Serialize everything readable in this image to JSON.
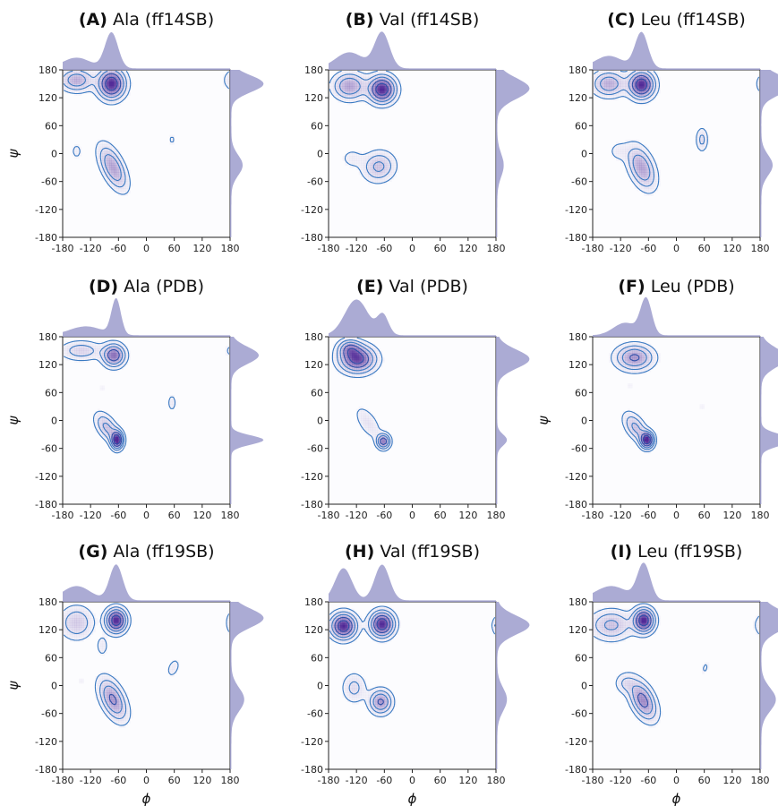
{
  "figure": {
    "axis_label_phi": "ϕ",
    "axis_label_psi": "ψ"
  },
  "chart_data": [
    {
      "type": "heatmap",
      "panel": "A",
      "title_bold": "(A)",
      "title_text": " Ala (ff14SB)",
      "xticks": [
        -180,
        -120,
        -60,
        0,
        60,
        120,
        180
      ],
      "yticks": [
        -180,
        -120,
        -60,
        0,
        60,
        120,
        180
      ],
      "xlim": [
        -180,
        180
      ],
      "ylim": [
        -180,
        180
      ],
      "show_xlabel": false,
      "show_ylabel": true,
      "regions": [
        {
          "phi": -75,
          "psi": 150,
          "sx": 18,
          "sy": 20,
          "peak": 1.0
        },
        {
          "phi": -150,
          "psi": 158,
          "sx": 22,
          "sy": 15,
          "peak": 0.5
        },
        {
          "phi": -72,
          "psi": -30,
          "sx": 14,
          "sy": 32,
          "peak": 0.55,
          "tilt": 0.45
        },
        {
          "phi": -150,
          "psi": 5,
          "sx": 8,
          "sy": 12,
          "peak": 0.12
        },
        {
          "phi": 55,
          "psi": 30,
          "sx": 6,
          "sy": 10,
          "peak": 0.1
        }
      ],
      "marg_phi": [
        {
          "c": -75,
          "w": 14,
          "h": 1.0
        },
        {
          "c": -150,
          "w": 30,
          "h": 0.3
        }
      ],
      "marg_psi": [
        {
          "c": 150,
          "w": 18,
          "h": 1.0
        },
        {
          "c": -25,
          "w": 22,
          "h": 0.35
        }
      ]
    },
    {
      "type": "heatmap",
      "panel": "B",
      "title_bold": "(B)",
      "title_text": " Val (ff14SB)",
      "xticks": [
        -180,
        -120,
        -60,
        0,
        60,
        120,
        180
      ],
      "yticks": [
        -180,
        -120,
        -60,
        0,
        60,
        120,
        180
      ],
      "xlim": [
        -180,
        180
      ],
      "ylim": [
        -180,
        180
      ],
      "show_xlabel": false,
      "show_ylabel": false,
      "regions": [
        {
          "phi": -65,
          "psi": 138,
          "sx": 18,
          "sy": 18,
          "peak": 1.0
        },
        {
          "phi": -135,
          "psi": 145,
          "sx": 22,
          "sy": 18,
          "peak": 0.55
        },
        {
          "phi": -72,
          "psi": -28,
          "sx": 22,
          "sy": 20,
          "peak": 0.4,
          "tilt": 0.3
        },
        {
          "phi": -130,
          "psi": -10,
          "sx": 16,
          "sy": 14,
          "peak": 0.12
        }
      ],
      "marg_phi": [
        {
          "c": -65,
          "w": 16,
          "h": 1.0
        },
        {
          "c": -135,
          "w": 30,
          "h": 0.45
        }
      ],
      "marg_psi": [
        {
          "c": 140,
          "w": 22,
          "h": 1.0
        },
        {
          "c": -25,
          "w": 25,
          "h": 0.2
        }
      ]
    },
    {
      "type": "heatmap",
      "panel": "C",
      "title_bold": "(C)",
      "title_text": " Leu (ff14SB)",
      "xticks": [
        -180,
        -120,
        -60,
        0,
        60,
        120,
        180
      ],
      "yticks": [
        -180,
        -120,
        -60,
        0,
        60,
        120,
        180
      ],
      "xlim": [
        -180,
        180
      ],
      "ylim": [
        -180,
        180
      ],
      "show_xlabel": false,
      "show_ylabel": false,
      "regions": [
        {
          "phi": -75,
          "psi": 148,
          "sx": 17,
          "sy": 18,
          "peak": 1.0
        },
        {
          "phi": -145,
          "psi": 150,
          "sx": 22,
          "sy": 17,
          "peak": 0.5
        },
        {
          "phi": -75,
          "psi": -30,
          "sx": 16,
          "sy": 30,
          "peak": 0.55,
          "tilt": 0.4
        },
        {
          "phi": -125,
          "psi": 5,
          "sx": 14,
          "sy": 14,
          "peak": 0.12
        },
        {
          "phi": 55,
          "psi": 30,
          "sx": 8,
          "sy": 16,
          "peak": 0.25
        }
      ],
      "marg_phi": [
        {
          "c": -75,
          "w": 14,
          "h": 1.0
        },
        {
          "c": -145,
          "w": 30,
          "h": 0.35
        }
      ],
      "marg_psi": [
        {
          "c": 148,
          "w": 20,
          "h": 1.0
        },
        {
          "c": -25,
          "w": 22,
          "h": 0.35
        }
      ]
    },
    {
      "type": "heatmap",
      "panel": "D",
      "title_bold": "(D)",
      "title_text": " Ala (PDB)",
      "xticks": [
        -180,
        -120,
        -60,
        0,
        60,
        120,
        180
      ],
      "yticks": [
        -180,
        -120,
        -60,
        0,
        60,
        120,
        180
      ],
      "xlim": [
        -180,
        180
      ],
      "ylim": [
        -180,
        180
      ],
      "show_xlabel": false,
      "show_ylabel": true,
      "regions": [
        {
          "phi": -70,
          "psi": 140,
          "sx": 15,
          "sy": 15,
          "peak": 0.75
        },
        {
          "phi": -140,
          "psi": 150,
          "sx": 28,
          "sy": 13,
          "peak": 0.3
        },
        {
          "phi": -63,
          "psi": -42,
          "sx": 8,
          "sy": 12,
          "peak": 1.0
        },
        {
          "phi": -85,
          "psi": -15,
          "sx": 12,
          "sy": 22,
          "peak": 0.4,
          "tilt": 0.6
        },
        {
          "phi": 55,
          "psi": 38,
          "sx": 6,
          "sy": 12,
          "peak": 0.15
        },
        {
          "phi": -95,
          "psi": 70,
          "sx": 4,
          "sy": 6,
          "peak": 0.08
        }
      ],
      "marg_phi": [
        {
          "c": -65,
          "w": 10,
          "h": 1.0
        },
        {
          "c": -130,
          "w": 35,
          "h": 0.25
        }
      ],
      "marg_psi": [
        {
          "c": 140,
          "w": 18,
          "h": 0.85
        },
        {
          "c": -42,
          "w": 10,
          "h": 1.0
        }
      ]
    },
    {
      "type": "heatmap",
      "panel": "E",
      "title_bold": "(E)",
      "title_text": " Val (PDB)",
      "xticks": [
        -180,
        -120,
        -60,
        0,
        60,
        120,
        180
      ],
      "yticks": [
        -180,
        -120,
        -60,
        0,
        60,
        120,
        180
      ],
      "xlim": [
        -180,
        180
      ],
      "ylim": [
        -180,
        180
      ],
      "show_xlabel": false,
      "show_ylabel": false,
      "regions": [
        {
          "phi": -118,
          "psi": 132,
          "sx": 24,
          "sy": 18,
          "peak": 0.9
        },
        {
          "phi": -135,
          "psi": 155,
          "sx": 15,
          "sy": 12,
          "peak": 0.45
        },
        {
          "phi": -62,
          "psi": -45,
          "sx": 9,
          "sy": 10,
          "peak": 0.7
        },
        {
          "phi": -95,
          "psi": -5,
          "sx": 12,
          "sy": 25,
          "peak": 0.2,
          "tilt": 0.6
        }
      ],
      "marg_phi": [
        {
          "c": -120,
          "w": 25,
          "h": 1.0
        },
        {
          "c": -63,
          "w": 12,
          "h": 0.55
        }
      ],
      "marg_psi": [
        {
          "c": 132,
          "w": 20,
          "h": 1.0
        },
        {
          "c": -42,
          "w": 12,
          "h": 0.3
        }
      ]
    },
    {
      "type": "heatmap",
      "panel": "F",
      "title_bold": "(F)",
      "title_text": " Leu  (PDB)",
      "xticks": [
        -180,
        -120,
        -60,
        0,
        60,
        120,
        180
      ],
      "yticks": [
        -180,
        -120,
        -60,
        0,
        60,
        120,
        180
      ],
      "xlim": [
        -180,
        180
      ],
      "ylim": [
        -180,
        180
      ],
      "show_xlabel": false,
      "show_ylabel": true,
      "regions": [
        {
          "phi": -90,
          "psi": 135,
          "sx": 25,
          "sy": 17,
          "peak": 0.6
        },
        {
          "phi": -63,
          "psi": -42,
          "sx": 9,
          "sy": 11,
          "peak": 1.0
        },
        {
          "phi": -88,
          "psi": -15,
          "sx": 12,
          "sy": 22,
          "peak": 0.4,
          "tilt": 0.6
        },
        {
          "phi": 55,
          "psi": 30,
          "sx": 4,
          "sy": 6,
          "peak": 0.08
        },
        {
          "phi": -100,
          "psi": 75,
          "sx": 4,
          "sy": 8,
          "peak": 0.08
        }
      ],
      "marg_phi": [
        {
          "c": -65,
          "w": 12,
          "h": 1.0
        },
        {
          "c": -110,
          "w": 25,
          "h": 0.35
        }
      ],
      "marg_psi": [
        {
          "c": 135,
          "w": 20,
          "h": 0.8
        },
        {
          "c": -42,
          "w": 12,
          "h": 1.0
        }
      ]
    },
    {
      "type": "heatmap",
      "panel": "G",
      "title_bold": "(G)",
      "title_text": " Ala (ff19SB)",
      "xticks": [
        -180,
        -120,
        -60,
        0,
        60,
        120,
        180
      ],
      "yticks": [
        -180,
        -120,
        -60,
        0,
        60,
        120,
        180
      ],
      "xlim": [
        -180,
        180
      ],
      "ylim": [
        -180,
        180
      ],
      "show_xlabel": true,
      "show_ylabel": true,
      "regions": [
        {
          "phi": -65,
          "psi": 140,
          "sx": 14,
          "sy": 16,
          "peak": 1.0
        },
        {
          "phi": -150,
          "psi": 135,
          "sx": 22,
          "sy": 22,
          "peak": 0.35
        },
        {
          "phi": -72,
          "psi": -30,
          "sx": 15,
          "sy": 30,
          "peak": 0.6,
          "tilt": 0.45
        },
        {
          "phi": -95,
          "psi": 85,
          "sx": 8,
          "sy": 14,
          "peak": 0.15
        },
        {
          "phi": 58,
          "psi": 38,
          "sx": 8,
          "sy": 14,
          "peak": 0.15,
          "tilt": -0.4
        },
        {
          "phi": -140,
          "psi": 10,
          "sx": 8,
          "sy": 10,
          "peak": 0.08
        }
      ],
      "marg_phi": [
        {
          "c": -65,
          "w": 14,
          "h": 1.0
        },
        {
          "c": -150,
          "w": 30,
          "h": 0.4
        }
      ],
      "marg_psi": [
        {
          "c": 145,
          "w": 20,
          "h": 1.0
        },
        {
          "c": -30,
          "w": 25,
          "h": 0.4
        }
      ]
    },
    {
      "type": "heatmap",
      "panel": "H",
      "title_bold": "(H)",
      "title_text": " Val (ff19SB)",
      "xticks": [
        -180,
        -120,
        -60,
        0,
        60,
        120,
        180
      ],
      "yticks": [
        -180,
        -120,
        -60,
        0,
        60,
        120,
        180
      ],
      "xlim": [
        -180,
        180
      ],
      "ylim": [
        -180,
        180
      ],
      "show_xlabel": true,
      "show_ylabel": false,
      "regions": [
        {
          "phi": -148,
          "psi": 128,
          "sx": 17,
          "sy": 17,
          "peak": 1.0
        },
        {
          "phi": -65,
          "psi": 132,
          "sx": 16,
          "sy": 17,
          "peak": 1.0
        },
        {
          "phi": -68,
          "psi": -35,
          "sx": 15,
          "sy": 16,
          "peak": 0.6
        },
        {
          "phi": -125,
          "psi": -5,
          "sx": 16,
          "sy": 20,
          "peak": 0.25
        },
        {
          "phi": 178,
          "psi": 130,
          "sx": 4,
          "sy": 8,
          "peak": 0.08
        }
      ],
      "marg_phi": [
        {
          "c": -148,
          "w": 18,
          "h": 0.9
        },
        {
          "c": -65,
          "w": 16,
          "h": 1.0
        }
      ],
      "marg_psi": [
        {
          "c": 130,
          "w": 20,
          "h": 1.0
        },
        {
          "c": -30,
          "w": 25,
          "h": 0.3
        }
      ]
    },
    {
      "type": "heatmap",
      "panel": "I",
      "title_bold": "(I)",
      "title_text": " Leu (ff19SB)",
      "xticks": [
        -180,
        -120,
        -60,
        0,
        60,
        120,
        180
      ],
      "yticks": [
        -180,
        -120,
        -60,
        0,
        60,
        120,
        180
      ],
      "xlim": [
        -180,
        180
      ],
      "ylim": [
        -180,
        180
      ],
      "show_xlabel": true,
      "show_ylabel": false,
      "regions": [
        {
          "phi": -70,
          "psi": 140,
          "sx": 14,
          "sy": 16,
          "peak": 1.0
        },
        {
          "phi": -140,
          "psi": 130,
          "sx": 28,
          "sy": 20,
          "peak": 0.4
        },
        {
          "phi": -72,
          "psi": -32,
          "sx": 15,
          "sy": 28,
          "peak": 0.65,
          "tilt": 0.45
        },
        {
          "phi": -110,
          "psi": 5,
          "sx": 14,
          "sy": 14,
          "peak": 0.2
        },
        {
          "phi": 62,
          "psi": 38,
          "sx": 6,
          "sy": 12,
          "peak": 0.1,
          "tilt": -0.3
        }
      ],
      "marg_phi": [
        {
          "c": -70,
          "w": 14,
          "h": 1.0
        },
        {
          "c": -140,
          "w": 35,
          "h": 0.4
        }
      ],
      "marg_psi": [
        {
          "c": 140,
          "w": 22,
          "h": 1.0
        },
        {
          "c": -30,
          "w": 25,
          "h": 0.45
        }
      ]
    }
  ]
}
